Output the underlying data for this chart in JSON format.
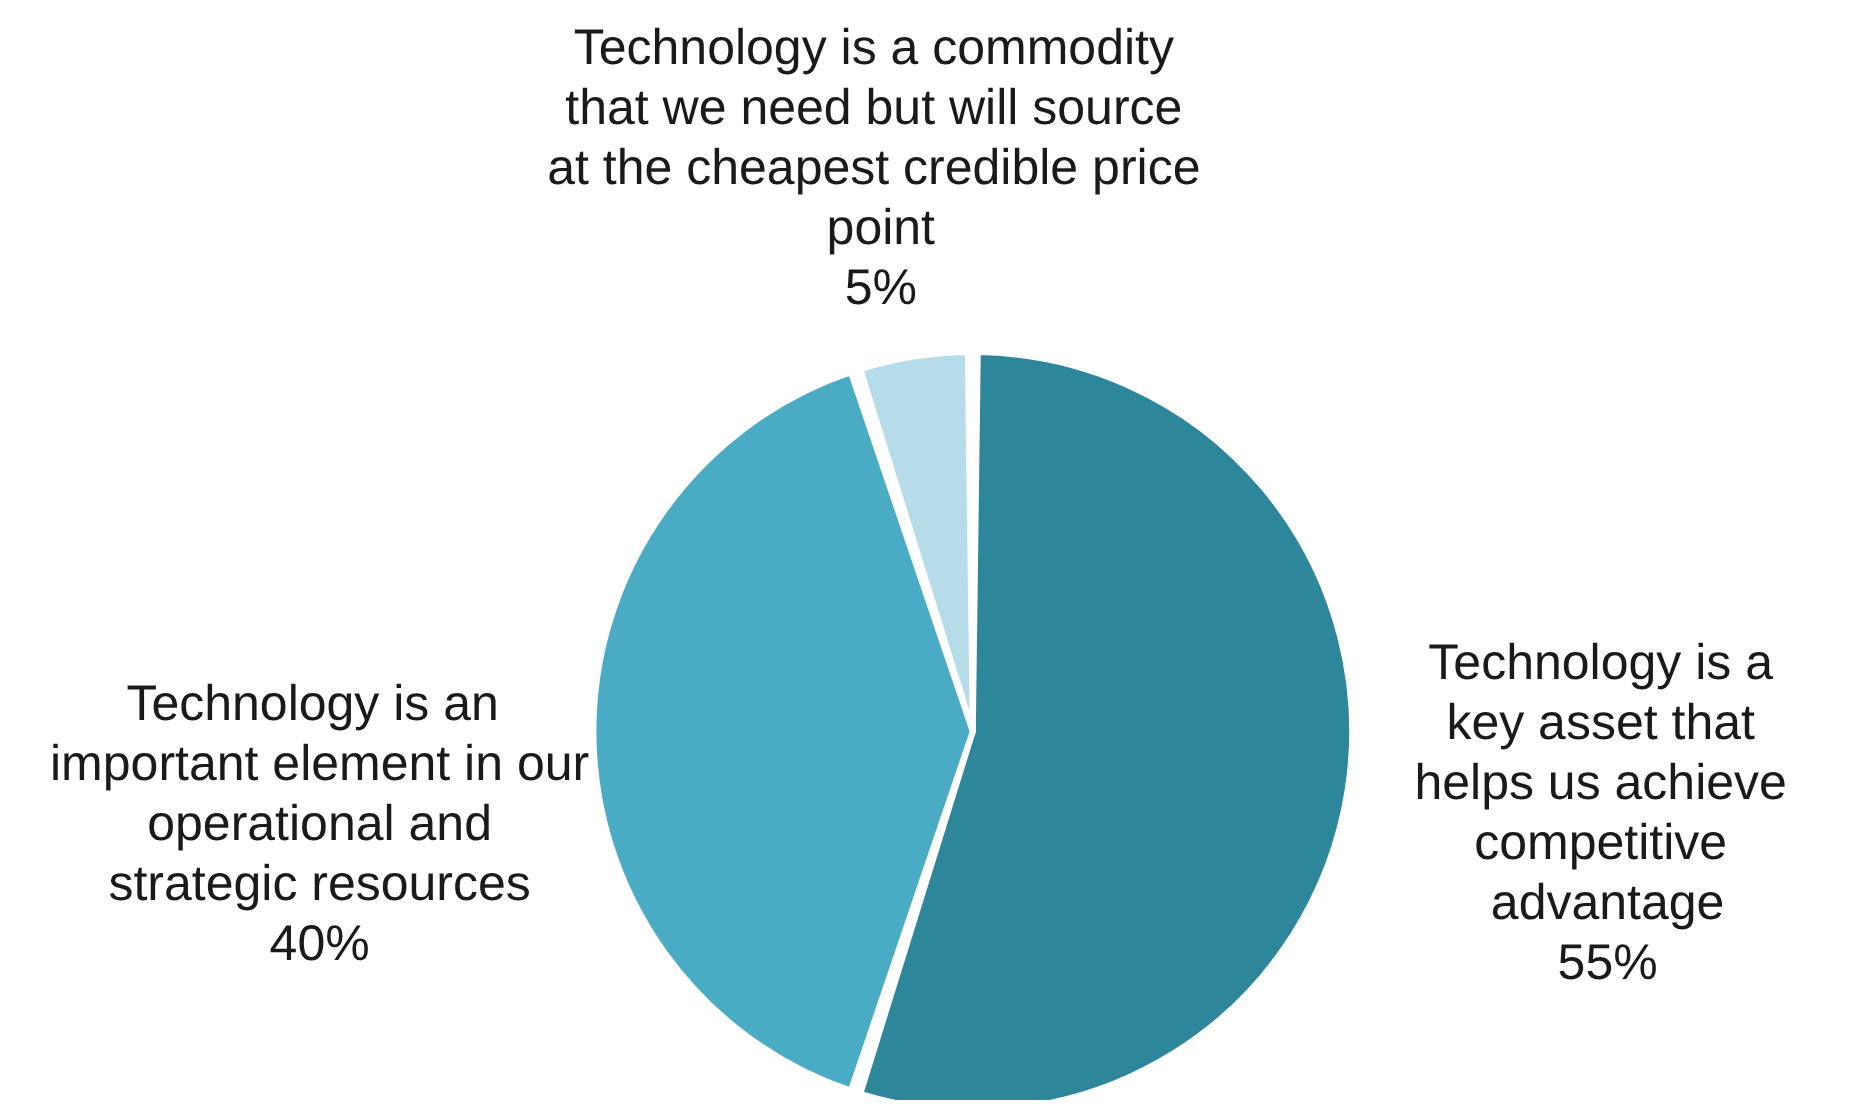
{
  "chart_data": {
    "type": "pie",
    "categories": [
      "Technology is a key asset that helps us achieve competitive advantage",
      "Technology is an important element in our operational and strategic resources",
      "Technology is a commodity that we need but will source at the cheapest credible price point"
    ],
    "values": [
      55,
      40,
      5
    ],
    "value_labels": [
      "55%",
      "40%",
      "5%"
    ],
    "colors": [
      "#2e869b",
      "#4aabc5",
      "#b5dce8"
    ],
    "legend": false
  }
}
